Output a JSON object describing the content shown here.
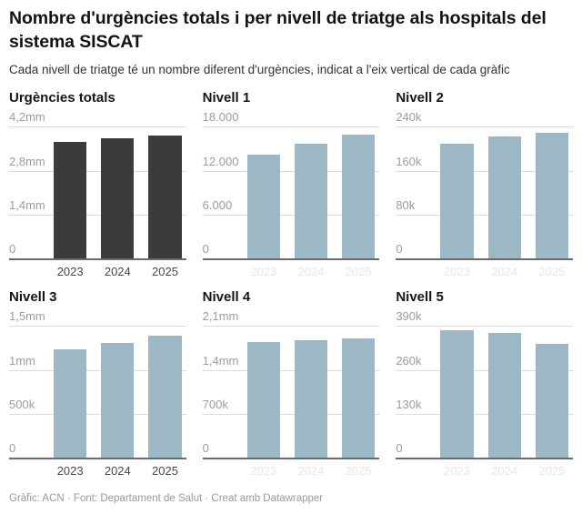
{
  "header": {
    "title": "Nombre d'urgències totals i per nivell de triatge als hospitals del sistema SISCAT",
    "subtitle": "Cada nivell de triatge té un nombre diferent d'urgències, indicat a l'eix vertical de cada gràfic"
  },
  "footer": {
    "text": "Gràfic: ACN · Font: Departament de Salut · Creat amb Datawrapper"
  },
  "colors": {
    "totals_bar": "#3b3b3b",
    "level_bar": "#9cb8c4",
    "gridline": "#dcdcdc",
    "axis_line": "#6b6b6b",
    "y_tick_label": "#9d9d9d",
    "x_tick_label": "#484848",
    "x_tick_label_faint": "#e3e8ea",
    "title_text": "#131313",
    "footer_text": "#9a9a9a"
  },
  "chart_data": [
    {
      "type": "bar",
      "title": "Urgències totals",
      "categories": [
        "2023",
        "2024",
        "2025"
      ],
      "values": [
        3720000,
        3850000,
        3930000
      ],
      "ylim": [
        0,
        4200000
      ],
      "yticks": [
        {
          "value": 0,
          "label": "0"
        },
        {
          "value": 1400000,
          "label": "1,4mm"
        },
        {
          "value": 2800000,
          "label": "2,8mm"
        },
        {
          "value": 4200000,
          "label": "4,2mm"
        }
      ],
      "bar_color": "#3b3b3b",
      "grid": true,
      "legend": "none",
      "years_style": "normal"
    },
    {
      "type": "bar",
      "title": "Nivell 1",
      "categories": [
        "2023",
        "2024",
        "2025"
      ],
      "values": [
        14200,
        15700,
        16900
      ],
      "ylim": [
        0,
        18000
      ],
      "yticks": [
        {
          "value": 0,
          "label": "0"
        },
        {
          "value": 6000,
          "label": "6.000"
        },
        {
          "value": 12000,
          "label": "12.000"
        },
        {
          "value": 18000,
          "label": "18.000"
        }
      ],
      "bar_color": "#9cb8c4",
      "grid": true,
      "legend": "none",
      "years_style": "faint"
    },
    {
      "type": "bar",
      "title": "Nivell 2",
      "categories": [
        "2023",
        "2024",
        "2025"
      ],
      "values": [
        209000,
        222000,
        230000
      ],
      "ylim": [
        0,
        240000
      ],
      "yticks": [
        {
          "value": 0,
          "label": "0"
        },
        {
          "value": 80000,
          "label": "80k"
        },
        {
          "value": 160000,
          "label": "160k"
        },
        {
          "value": 240000,
          "label": "240k"
        }
      ],
      "bar_color": "#9cb8c4",
      "grid": true,
      "legend": "none",
      "years_style": "faint"
    },
    {
      "type": "bar",
      "title": "Nivell 3",
      "categories": [
        "2023",
        "2024",
        "2025"
      ],
      "values": [
        1240000,
        1310000,
        1390000
      ],
      "ylim": [
        0,
        1500000
      ],
      "yticks": [
        {
          "value": 0,
          "label": "0"
        },
        {
          "value": 500000,
          "label": "500k"
        },
        {
          "value": 1000000,
          "label": "1mm"
        },
        {
          "value": 1500000,
          "label": "1,5mm"
        }
      ],
      "bar_color": "#9cb8c4",
      "grid": true,
      "legend": "none",
      "years_style": "normal"
    },
    {
      "type": "bar",
      "title": "Nivell 4",
      "categories": [
        "2023",
        "2024",
        "2025"
      ],
      "values": [
        1840000,
        1870000,
        1910000
      ],
      "ylim": [
        0,
        2100000
      ],
      "yticks": [
        {
          "value": 0,
          "label": "0"
        },
        {
          "value": 700000,
          "label": "700k"
        },
        {
          "value": 1400000,
          "label": "1,4mm"
        },
        {
          "value": 2100000,
          "label": "2,1mm"
        }
      ],
      "bar_color": "#9cb8c4",
      "grid": true,
      "legend": "none",
      "years_style": "faint"
    },
    {
      "type": "bar",
      "title": "Nivell 5",
      "categories": [
        "2023",
        "2024",
        "2025"
      ],
      "values": [
        378000,
        370000,
        338000
      ],
      "ylim": [
        0,
        390000
      ],
      "yticks": [
        {
          "value": 0,
          "label": "0"
        },
        {
          "value": 130000,
          "label": "130k"
        },
        {
          "value": 260000,
          "label": "260k"
        },
        {
          "value": 390000,
          "label": "390k"
        }
      ],
      "bar_color": "#9cb8c4",
      "grid": true,
      "legend": "none",
      "years_style": "faint"
    }
  ]
}
